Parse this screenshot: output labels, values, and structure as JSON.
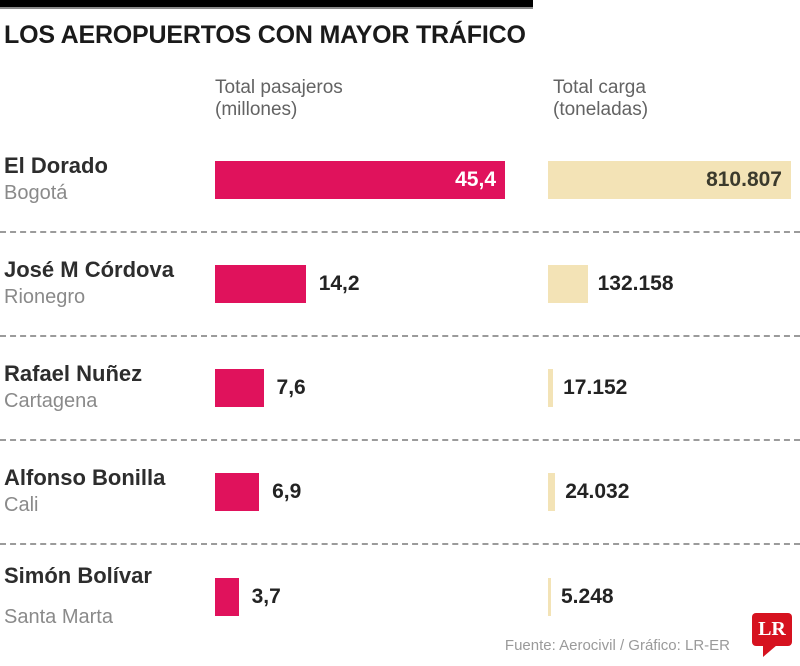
{
  "header": {
    "title": "LOS AEROPUERTOS CON MAYOR TRÁFICO"
  },
  "columns": {
    "passengers_label": "Total pasajeros",
    "passengers_sublabel": "(millones)",
    "cargo_label": "Total carga",
    "cargo_sublabel": "(toneladas)"
  },
  "colors": {
    "passengers_bar": "#e0125c",
    "cargo_bar": "#f3e3b6",
    "logo_red": "#d6121f",
    "top_bar": "#000000"
  },
  "rows": [
    {
      "airport": "El Dorado",
      "city": "Bogotá",
      "passengers_label": "45,4",
      "cargo_label": "810.807"
    },
    {
      "airport": "José M Córdova",
      "city": "Rionegro",
      "passengers_label": "14,2",
      "cargo_label": "132.158"
    },
    {
      "airport": "Rafael Nuñez",
      "city": "Cartagena",
      "passengers_label": "7,6",
      "cargo_label": "17.152"
    },
    {
      "airport": "Alfonso Bonilla",
      "city": "Cali",
      "passengers_label": "6,9",
      "cargo_label": "24.032"
    },
    {
      "airport": "Simón Bolívar",
      "city": "Santa Marta",
      "passengers_label": "3,7",
      "cargo_label": "5.248"
    }
  ],
  "footer": {
    "source": "Fuente: Aerocivil / Gráfico: LR-ER",
    "logo_text": "LR"
  },
  "chart_data": {
    "type": "bar",
    "orientation": "horizontal",
    "title": "LOS AEROPUERTOS CON MAYOR TRÁFICO",
    "categories": [
      "El Dorado (Bogotá)",
      "José M Córdova (Rionegro)",
      "Rafael Nuñez (Cartagena)",
      "Alfonso Bonilla (Cali)",
      "Simón Bolívar (Santa Marta)"
    ],
    "series": [
      {
        "key": "passengers",
        "name": "Total pasajeros (millones)",
        "values": [
          45.4,
          14.2,
          7.6,
          6.9,
          3.7
        ]
      },
      {
        "key": "cargo",
        "name": "Total carga (toneladas)",
        "values": [
          810807,
          132158,
          17152,
          24032,
          5248
        ]
      }
    ],
    "legend_position": "column-headers",
    "grid": false,
    "source": "Fuente: Aerocivil / Gráfico: LR-ER"
  }
}
